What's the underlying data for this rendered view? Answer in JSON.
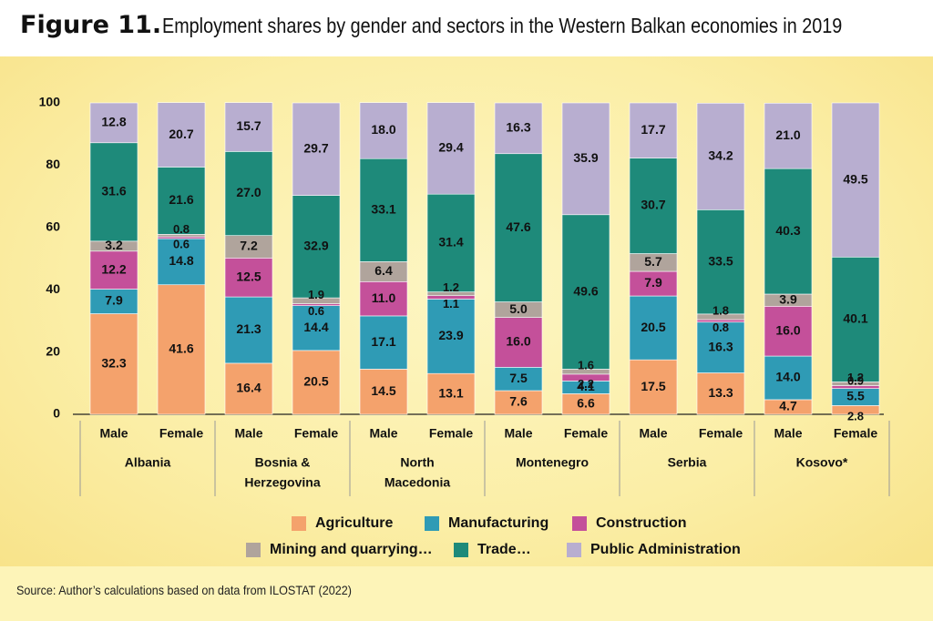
{
  "figure_label": "Figure 11.",
  "title": "Employment shares by gender and sectors in the Western Balkan economies in 2019",
  "source": "Source: Author’s calculations based on data from ILOSTAT (2022)",
  "colors": {
    "Agriculture": "#f4a26c",
    "Manufacturing": "#2f9bb5",
    "Construction": "#c4509a",
    "Mining": "#b0a49c",
    "Trade": "#1e8a7a",
    "PublicAdmin": "#b8aed0"
  },
  "chart_data": {
    "type": "bar",
    "stacked": true,
    "ylim": [
      0,
      100
    ],
    "yticks": [
      0,
      20,
      40,
      60,
      80,
      100
    ],
    "groups": [
      {
        "name": "Albania",
        "categories": [
          "Male",
          "Female"
        ]
      },
      {
        "name": "Bosnia & Herzegovina",
        "categories": [
          "Male",
          "Female"
        ]
      },
      {
        "name": "North Macedonia",
        "categories": [
          "Male",
          "Female"
        ]
      },
      {
        "name": "Montenegro",
        "categories": [
          "Male",
          "Female"
        ]
      },
      {
        "name": "Serbia",
        "categories": [
          "Male",
          "Female"
        ]
      },
      {
        "name": "Kosovo*",
        "categories": [
          "Male",
          "Female"
        ]
      }
    ],
    "series": [
      {
        "name": "Agriculture",
        "values": [
          32.3,
          41.6,
          16.4,
          20.5,
          14.5,
          13.1,
          7.6,
          6.6,
          17.5,
          13.3,
          4.7,
          2.8
        ]
      },
      {
        "name": "Manufacturing",
        "values": [
          7.9,
          14.8,
          21.3,
          14.4,
          17.1,
          23.9,
          7.5,
          4.1,
          20.5,
          16.3,
          14.0,
          5.5
        ]
      },
      {
        "name": "Construction",
        "values": [
          12.2,
          0.6,
          12.5,
          0.6,
          11.0,
          1.1,
          16.0,
          2.2,
          7.9,
          0.8,
          16.0,
          0.9
        ]
      },
      {
        "name": "Mining and quarrying…",
        "values": [
          3.2,
          0.8,
          7.2,
          1.9,
          6.4,
          1.2,
          5.0,
          1.6,
          5.7,
          1.8,
          3.9,
          1.2
        ]
      },
      {
        "name": "Trade…",
        "values": [
          31.6,
          21.6,
          27.0,
          32.9,
          33.1,
          31.4,
          47.6,
          49.6,
          30.7,
          33.5,
          40.3,
          40.1
        ]
      },
      {
        "name": "Public Administration",
        "values": [
          12.8,
          20.7,
          15.7,
          29.7,
          18.0,
          29.4,
          16.3,
          35.9,
          17.7,
          34.2,
          21.0,
          49.5
        ]
      }
    ],
    "legend_position": "bottom"
  }
}
